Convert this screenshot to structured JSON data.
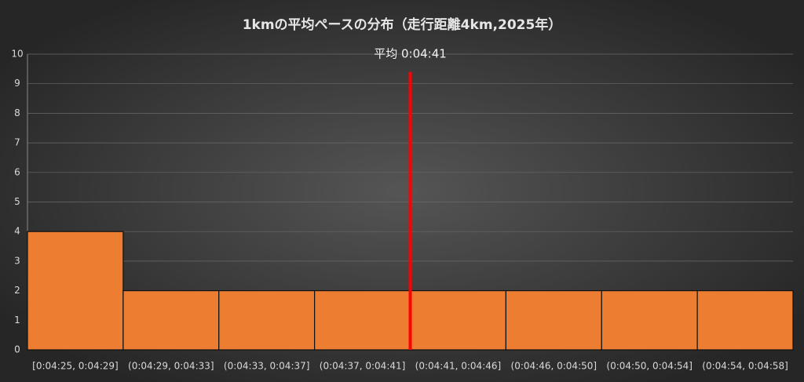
{
  "chart_data": {
    "type": "histogram",
    "title": "1kmの平均ペースの分布（走行距離4km,2025年）",
    "categories": [
      "[0:04:25, 0:04:29]",
      "(0:04:29, 0:04:33]",
      "(0:04:33, 0:04:37]",
      "(0:04:37, 0:04:41]",
      "(0:04:41, 0:04:46]",
      "(0:04:46, 0:04:50]",
      "(0:04:50, 0:04:54]",
      "(0:04:54, 0:04:58]"
    ],
    "values": [
      4,
      2,
      2,
      2,
      2,
      2,
      2,
      2
    ],
    "color": "#ed7d31",
    "ylim": [
      0,
      10
    ],
    "yticks": [
      0,
      1,
      2,
      3,
      4,
      5,
      6,
      7,
      8,
      9,
      10
    ],
    "grid": true,
    "annotation": {
      "text": "平均 0:04:41",
      "x": 4,
      "y": 9.4,
      "color": "#ff0000"
    }
  }
}
